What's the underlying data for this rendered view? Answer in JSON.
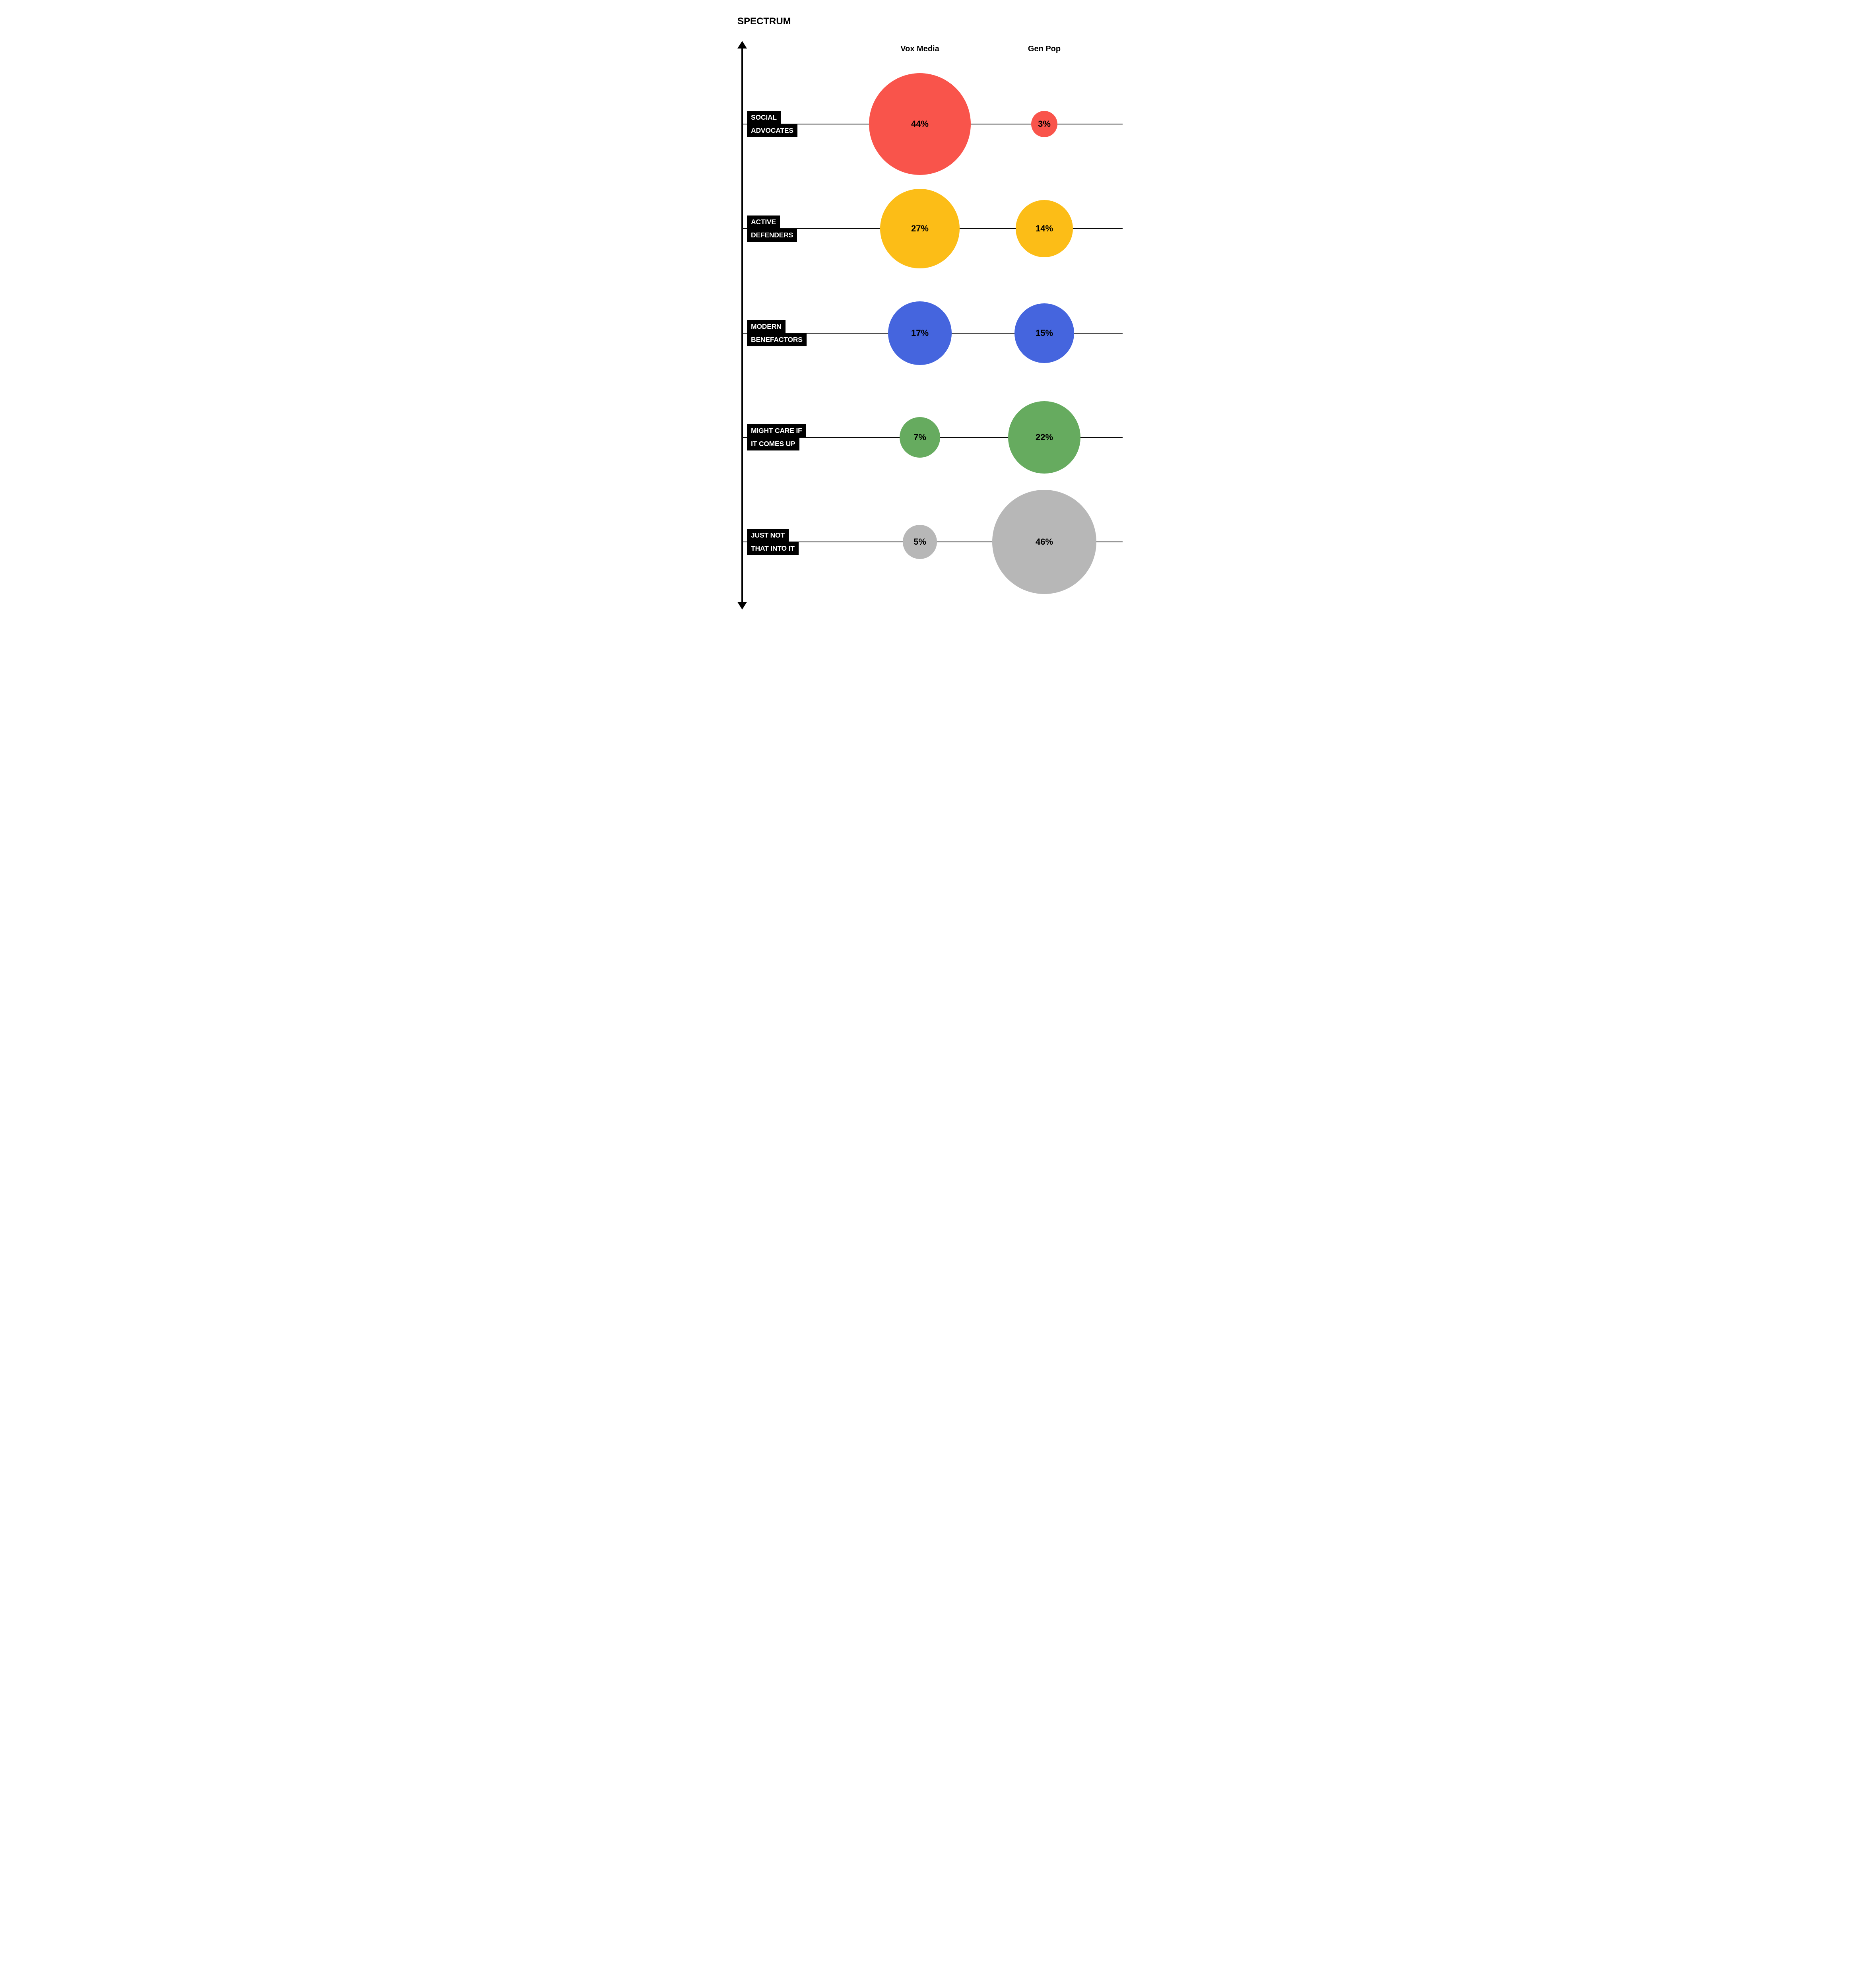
{
  "title": "SPECTRUM",
  "columns": [
    "Vox Media",
    "Gen Pop"
  ],
  "axis": {
    "orientation": "vertical",
    "style": "double-arrow",
    "color": "#000000"
  },
  "chart_data": {
    "type": "bubble",
    "title": "SPECTRUM",
    "unit": "%",
    "columns": [
      "Vox Media",
      "Gen Pop"
    ],
    "categories": [
      "SOCIAL ADVOCATES",
      "ACTIVE DEFENDERS",
      "MODERN BENEFACTORS",
      "MIGHT CARE IF IT COMES UP",
      "JUST NOT THAT INTO IT"
    ],
    "category_lines": [
      [
        "SOCIAL",
        "ADVOCATES"
      ],
      [
        "ACTIVE",
        "DEFENDERS"
      ],
      [
        "MODERN",
        "BENEFACTORS"
      ],
      [
        "MIGHT CARE IF",
        "IT COMES UP"
      ],
      [
        "JUST NOT",
        "THAT INTO IT"
      ]
    ],
    "series": [
      {
        "name": "Vox Media",
        "values": [
          44,
          27,
          17,
          7,
          5
        ]
      },
      {
        "name": "Gen Pop",
        "values": [
          3,
          14,
          15,
          22,
          46
        ]
      }
    ],
    "bubble_labels": [
      [
        "44%",
        "27%",
        "17%",
        "7%",
        "5%"
      ],
      [
        "3%",
        "14%",
        "15%",
        "22%",
        "46%"
      ]
    ],
    "category_colors": [
      "#F9544B",
      "#FCBD17",
      "#4565DE",
      "#66AB5F",
      "#B7B7B7"
    ],
    "label_bg": "#000000",
    "label_text_color": "#FFFFFF",
    "value_text_color": "#000000",
    "line_color": "#0A0A0A",
    "legend_position": "top-columns",
    "grid": false
  }
}
